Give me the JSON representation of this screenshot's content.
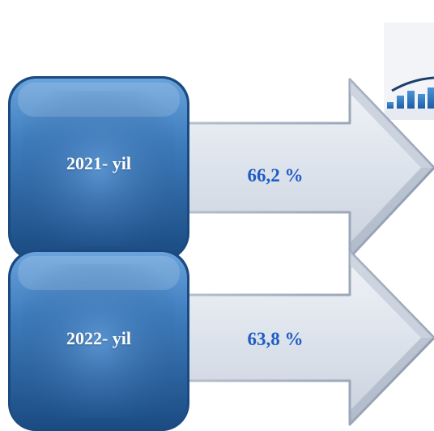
{
  "rows": [
    {
      "year": "2021- yil",
      "value": "66,2 %"
    },
    {
      "year": "2022- yil",
      "value": "63,8 %"
    }
  ],
  "colors": {
    "box_dark": "#1c4f86",
    "box_light": "#5f97d2",
    "arrow_fill": "#dfe5ee",
    "arrow_edge": "#aeb8c6",
    "value_text": "#1f5cc4",
    "year_text": "#ffffff"
  },
  "decor": {
    "icon": "bar-chart-growth-icon"
  }
}
